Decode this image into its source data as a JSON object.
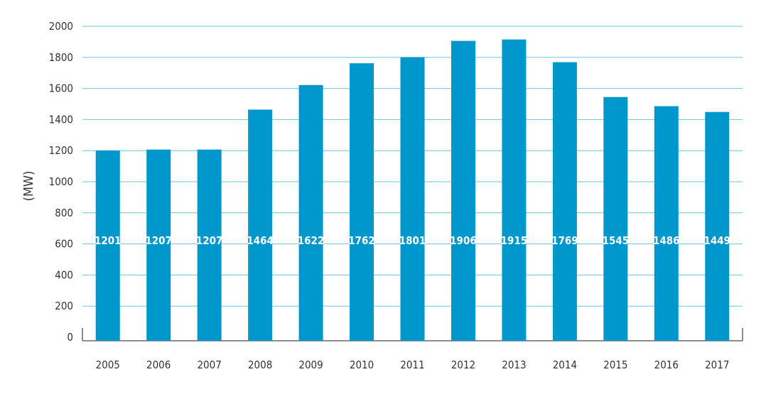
{
  "chart_data": {
    "type": "bar",
    "title": "",
    "xlabel": "",
    "ylabel": "(MW)",
    "ylim": [
      0,
      2000
    ],
    "yticks": [
      0,
      200,
      400,
      600,
      800,
      1000,
      1200,
      1400,
      1600,
      1800,
      2000
    ],
    "grid": true,
    "legend": "none",
    "categories": [
      "2005",
      "2006",
      "2007",
      "2008",
      "2009",
      "2010",
      "2011",
      "2012",
      "2013",
      "2014",
      "2015",
      "2016",
      "2017"
    ],
    "values": [
      1201,
      1207,
      1207,
      1464,
      1622,
      1762,
      1801,
      1906,
      1915,
      1769,
      1545,
      1486,
      1449
    ],
    "colors": {
      "bar": "#0098cc",
      "grid": "#6cc6e0",
      "axis": "#666666"
    }
  }
}
